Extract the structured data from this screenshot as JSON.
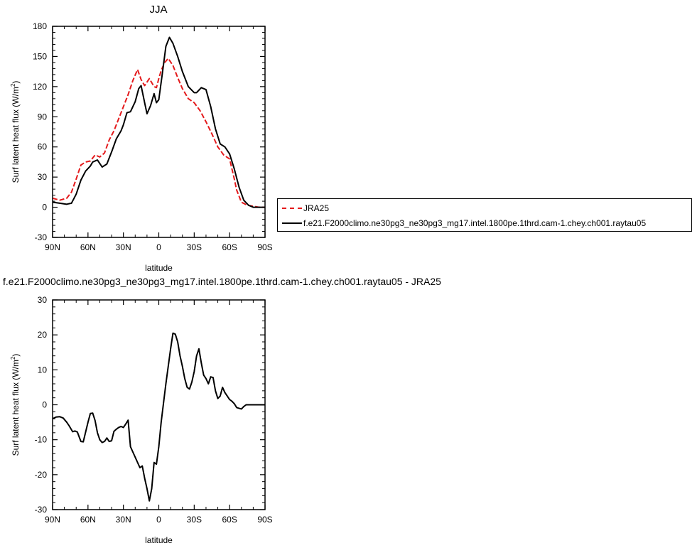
{
  "chart_data": [
    {
      "type": "line",
      "title": "JJA",
      "xlabel": "latitude",
      "ylabel": "Surf latent heat flux (W/m²)",
      "xlim": [
        90,
        -90
      ],
      "ylim": [
        -30,
        180
      ],
      "yticks": [
        -30,
        0,
        30,
        60,
        90,
        120,
        150,
        180
      ],
      "xticks": [
        90,
        60,
        30,
        0,
        -30,
        -60,
        -90
      ],
      "xticklabels": [
        "90N",
        "60N",
        "30N",
        "0",
        "30S",
        "60S",
        "90S"
      ],
      "legend_position": "right",
      "series": [
        {
          "name": "JRA25",
          "color": "#e41a1c",
          "style": "dashed",
          "x": [
            90,
            84,
            78,
            74,
            70,
            66,
            62,
            58,
            54,
            50,
            46,
            42,
            38,
            34,
            30,
            26,
            22,
            18,
            15,
            12,
            8,
            4,
            2,
            0,
            -2,
            -5,
            -8,
            -12,
            -16,
            -20,
            -25,
            -30,
            -35,
            -40,
            -45,
            -50,
            -55,
            -60,
            -64,
            -66,
            -70,
            -75,
            -80,
            -85,
            -90
          ],
          "y": [
            9,
            7,
            9,
            15,
            28,
            42,
            45,
            46,
            52,
            50,
            54,
            67,
            76,
            88,
            100,
            112,
            126,
            137,
            127,
            121,
            128,
            120,
            119,
            128,
            136,
            144,
            148,
            141,
            129,
            118,
            108,
            104,
            96,
            85,
            73,
            60,
            52,
            48,
            28,
            17,
            5,
            2,
            1,
            0,
            0
          ]
        },
        {
          "name": "f.e21.F2000climo.ne30pg3_ne30pg3_mg17.intel.1800pe.1thrd.cam-1.chey.ch001.raytau05",
          "color": "#000000",
          "style": "solid",
          "x": [
            90,
            84,
            78,
            74,
            70,
            66,
            62,
            58,
            56,
            52,
            48,
            44,
            40,
            36,
            32,
            30,
            27,
            24,
            20,
            17,
            15,
            12,
            10,
            7,
            4,
            2,
            0,
            -3,
            -6,
            -9,
            -12,
            -16,
            -20,
            -25,
            -30,
            -32,
            -36,
            -40,
            -44,
            -48,
            -52,
            -56,
            -60,
            -64,
            -68,
            -72,
            -76,
            -80,
            -85,
            -90
          ],
          "y": [
            5,
            4,
            3,
            4,
            13,
            27,
            36,
            41,
            45,
            47,
            40,
            43,
            55,
            68,
            76,
            82,
            94,
            95,
            105,
            118,
            121,
            104,
            93,
            101,
            113,
            104,
            107,
            133,
            160,
            169,
            163,
            150,
            135,
            120,
            114,
            114,
            119,
            117,
            100,
            78,
            63,
            60,
            53,
            38,
            20,
            7,
            2,
            0,
            0,
            0
          ]
        }
      ]
    },
    {
      "type": "line",
      "title": "f.e21.F2000climo.ne30pg3_ne30pg3_mg17.intel.1800pe.1thrd.cam-1.chey.ch001.raytau05 - JRA25",
      "xlabel": "latitude",
      "ylabel": "Surf latent heat flux (W/m²)",
      "xlim": [
        90,
        -90
      ],
      "ylim": [
        -30,
        30
      ],
      "yticks": [
        -30,
        -20,
        -10,
        0,
        10,
        20,
        30
      ],
      "xticks": [
        90,
        60,
        30,
        0,
        -30,
        -60,
        -90
      ],
      "xticklabels": [
        "90N",
        "60N",
        "30N",
        "0",
        "30S",
        "60S",
        "90S"
      ],
      "series": [
        {
          "name": "",
          "color": "#000000",
          "style": "solid",
          "x": [
            90,
            87,
            84,
            81,
            78,
            76,
            73,
            71,
            69,
            66,
            64,
            60,
            58,
            56,
            54,
            52,
            50,
            48,
            46,
            44,
            42,
            40,
            38,
            36,
            34,
            32,
            30,
            28,
            26,
            24,
            22,
            20,
            18,
            16,
            14,
            12,
            10,
            8,
            6,
            4,
            2,
            0,
            -2,
            -4,
            -6,
            -8,
            -10,
            -12,
            -14,
            -16,
            -18,
            -20,
            -22,
            -24,
            -26,
            -28,
            -30,
            -32,
            -34,
            -36,
            -38,
            -40,
            -42,
            -44,
            -46,
            -48,
            -50,
            -52,
            -54,
            -56,
            -58,
            -60,
            -62,
            -64,
            -66,
            -68,
            -70,
            -72,
            -74,
            -76,
            -78,
            -80,
            -82,
            -84,
            -86,
            -88,
            -90
          ],
          "y": [
            -4,
            -3.5,
            -3.4,
            -3.8,
            -5,
            -6,
            -7.7,
            -7.5,
            -7.8,
            -10.5,
            -10.6,
            -5,
            -2.5,
            -2.4,
            -4.5,
            -8,
            -10,
            -10.8,
            -10.5,
            -9.5,
            -10.5,
            -10.3,
            -7.6,
            -7,
            -6.5,
            -6.2,
            -6.5,
            -5.5,
            -4.4,
            -12,
            -13.5,
            -15,
            -16.5,
            -18,
            -17.5,
            -21,
            -24,
            -27.5,
            -24,
            -16.5,
            -17,
            -12,
            -5,
            0.5,
            6,
            11,
            16,
            20.5,
            20.2,
            18,
            14,
            11,
            7.5,
            5,
            4.5,
            6.5,
            9.5,
            14,
            16,
            12,
            8.5,
            7.5,
            6,
            8,
            7.8,
            4,
            1.8,
            2.5,
            5,
            3.5,
            2.5,
            1.5,
            1,
            0.3,
            -0.8,
            -1,
            -1.2,
            -0.5,
            0,
            0,
            0,
            0,
            0,
            0,
            0,
            0,
            0
          ]
        }
      ]
    }
  ]
}
